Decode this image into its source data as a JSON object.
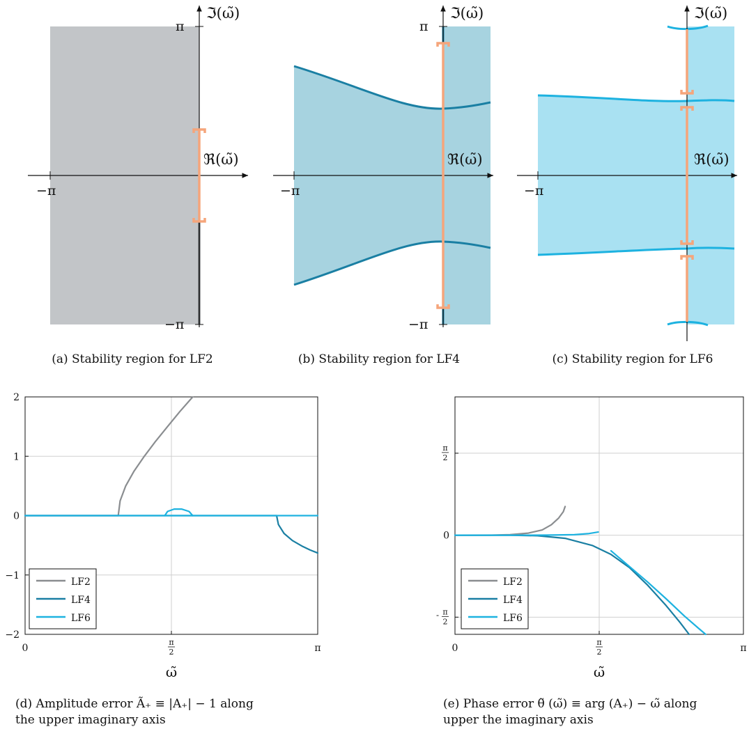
{
  "colors": {
    "lf2": "#8a8d90",
    "lf4": "#1a7fa3",
    "lf6": "#1db2e0",
    "region_lf2": "#c2c5c8",
    "region_lf4": "#a7d3e0",
    "region_lf6": "#a9e1f2",
    "interval": "#f5a57b",
    "grid": "#cfcfcf"
  },
  "panels": {
    "a": {
      "caption": "(a)  Stability region for LF2",
      "im_label": "ℑ(ω̃)",
      "re_label": "ℜ(ω̃)",
      "pi_top": "π",
      "pi_bottom": "−π",
      "neg_pi": "−π"
    },
    "b": {
      "caption": "(b)  Stability region for LF4",
      "im_label": "ℑ(ω̃)",
      "re_label": "ℜ(ω̃)",
      "pi_top": "π",
      "pi_bottom": "−π",
      "neg_pi": "−π"
    },
    "c": {
      "caption": "(c)  Stability region for LF6",
      "im_label": "ℑ(ω̃)",
      "re_label": "ℜ(ω̃)",
      "neg_pi": "−π"
    }
  },
  "chart_data": [
    {
      "type": "line",
      "caption_line1": "(d)  Amplitude error Ã₊ ≡ |A₊| − 1 along",
      "caption_line2": "the upper imaginary axis",
      "xlabel": "ω̃",
      "xlim": [
        0,
        3.1416
      ],
      "ylim": [
        -2,
        2
      ],
      "x_ticks": [
        {
          "value": 0,
          "label": "0"
        },
        {
          "value": 1.5708,
          "label": "π/2"
        },
        {
          "value": 3.1416,
          "label": "π"
        }
      ],
      "y_ticks": [
        {
          "value": -2,
          "label": "−2"
        },
        {
          "value": -1,
          "label": "−1"
        },
        {
          "value": 0,
          "label": "0"
        },
        {
          "value": 1,
          "label": "1"
        },
        {
          "value": 2,
          "label": "2"
        }
      ],
      "grid": true,
      "legend_position": "bottom-left",
      "series": [
        {
          "name": "LF2",
          "color": "#8a8d90",
          "segments": [
            [
              [
                0,
                0
              ],
              [
                1.0,
                0
              ]
            ],
            [
              [
                1.0,
                0
              ],
              [
                1.02,
                0.25
              ],
              [
                1.08,
                0.5
              ],
              [
                1.17,
                0.75
              ],
              [
                1.28,
                1.0
              ],
              [
                1.4,
                1.25
              ],
              [
                1.53,
                1.5
              ],
              [
                1.66,
                1.75
              ],
              [
                1.8,
                2.0
              ]
            ]
          ]
        },
        {
          "name": "LF4",
          "color": "#1a7fa3",
          "segments": [
            [
              [
                0,
                0
              ],
              [
                2.7,
                0
              ]
            ],
            [
              [
                2.7,
                0
              ],
              [
                2.72,
                -0.15
              ],
              [
                2.78,
                -0.3
              ],
              [
                2.87,
                -0.42
              ],
              [
                2.98,
                -0.52
              ],
              [
                3.06,
                -0.58
              ],
              [
                3.1416,
                -0.63
              ]
            ]
          ]
        },
        {
          "name": "LF6",
          "color": "#1db2e0",
          "segments": [
            [
              [
                0,
                0
              ],
              [
                3.1416,
                0
              ]
            ],
            [
              [
                1.5,
                0
              ],
              [
                1.53,
                0.07
              ],
              [
                1.6,
                0.11
              ],
              [
                1.68,
                0.11
              ],
              [
                1.76,
                0.07
              ],
              [
                1.8,
                0
              ]
            ]
          ]
        }
      ]
    },
    {
      "type": "line",
      "caption_line1": "(e)  Phase error θ̃ (ω̃) ≡ arg (A₊) − ω̃ along",
      "caption_line2": "upper the imaginary axis",
      "xlabel": "ω̃",
      "xlim": [
        0,
        3.1416
      ],
      "ylim": [
        -1.9,
        2.65
      ],
      "x_ticks": [
        {
          "value": 0,
          "label": "0"
        },
        {
          "value": 1.5708,
          "label": "π/2"
        },
        {
          "value": 3.1416,
          "label": "π"
        }
      ],
      "y_ticks": [
        {
          "value": -1.5708,
          "label": "-π/2"
        },
        {
          "value": 0,
          "label": "0"
        },
        {
          "value": 1.5708,
          "label": "π/2"
        }
      ],
      "grid": true,
      "legend_position": "bottom-left",
      "series": [
        {
          "name": "LF2",
          "color": "#8a8d90",
          "segments": [
            [
              [
                0,
                0
              ],
              [
                0.4,
                0.002
              ],
              [
                0.6,
                0.01
              ],
              [
                0.8,
                0.04
              ],
              [
                0.95,
                0.1
              ],
              [
                1.05,
                0.2
              ],
              [
                1.13,
                0.33
              ],
              [
                1.18,
                0.45
              ],
              [
                1.2,
                0.55
              ]
            ]
          ]
        },
        {
          "name": "LF4",
          "color": "#1a7fa3",
          "segments": [
            [
              [
                0,
                0
              ],
              [
                0.6,
                0
              ],
              [
                0.9,
                -0.01
              ],
              [
                1.2,
                -0.06
              ],
              [
                1.5,
                -0.2
              ],
              [
                1.7,
                -0.37
              ],
              [
                1.9,
                -0.62
              ],
              [
                2.1,
                -0.96
              ],
              [
                2.3,
                -1.35
              ],
              [
                2.45,
                -1.67
              ],
              [
                2.55,
                -1.9
              ]
            ]
          ]
        },
        {
          "name": "LF6",
          "color": "#1db2e0",
          "segments": [
            [
              [
                0,
                0
              ],
              [
                0.6,
                0
              ],
              [
                1.0,
                0.002
              ],
              [
                1.3,
                0.01
              ],
              [
                1.45,
                0.03
              ],
              [
                1.56,
                0.06
              ]
            ],
            [
              [
                1.7,
                -0.3
              ],
              [
                1.9,
                -0.6
              ],
              [
                2.1,
                -0.9
              ],
              [
                2.3,
                -1.22
              ],
              [
                2.5,
                -1.55
              ],
              [
                2.65,
                -1.78
              ],
              [
                2.73,
                -1.9
              ]
            ]
          ]
        }
      ]
    }
  ]
}
